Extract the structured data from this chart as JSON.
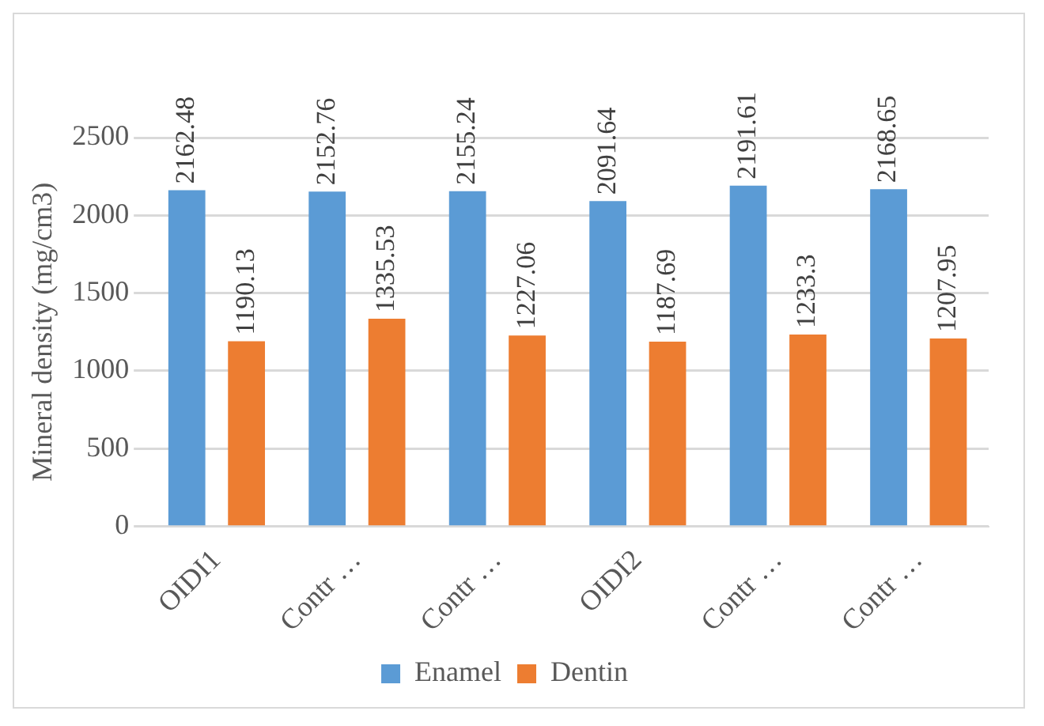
{
  "chart_data": {
    "type": "bar",
    "ylabel": "Mineral density (mg/cm3)",
    "categories": [
      "OIDI1",
      "Contr …",
      "Contr …",
      "OIDI2",
      "Contr …",
      "Contr …"
    ],
    "series": [
      {
        "name": "Enamel",
        "color": "#5b9bd5",
        "values": [
          2162.48,
          2152.76,
          2155.24,
          2091.64,
          2191.61,
          2168.65
        ]
      },
      {
        "name": "Dentin",
        "color": "#ed7d31",
        "values": [
          1190.13,
          1335.53,
          1227.06,
          1187.69,
          1233.3,
          1207.95
        ]
      }
    ],
    "ylim": [
      0,
      2500
    ],
    "yticks": [
      0,
      500,
      1000,
      1500,
      2000,
      2500
    ],
    "grid": "y",
    "legend": "bottom",
    "data_labels": true
  }
}
